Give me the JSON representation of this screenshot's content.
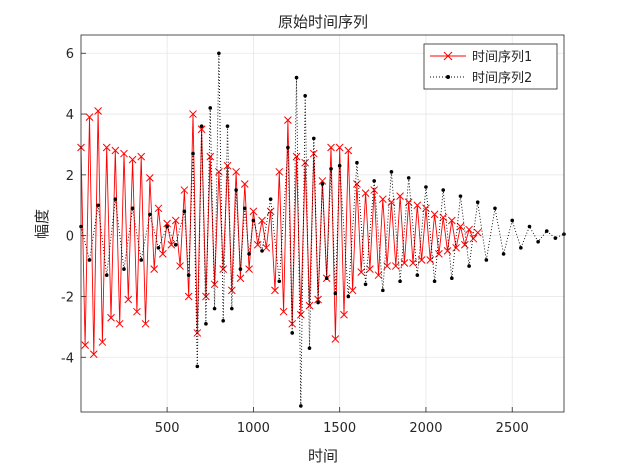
{
  "chart_data": {
    "type": "line",
    "title": "原始时间序列",
    "xlabel": "时间",
    "ylabel": "幅度",
    "xlim": [
      1,
      2800
    ],
    "ylim": [
      -5.8,
      6.6
    ],
    "xticks": [
      500,
      1000,
      1500,
      2000,
      2500
    ],
    "yticks": [
      -4,
      -2,
      0,
      2,
      4,
      6
    ],
    "grid": true,
    "legend_position": "top-right",
    "series": [
      {
        "name": "时间序列1",
        "color": "#ff0000",
        "line_style": "solid",
        "marker": "x",
        "x": [
          1,
          25,
          50,
          75,
          100,
          125,
          150,
          175,
          200,
          225,
          250,
          275,
          300,
          325,
          350,
          375,
          400,
          425,
          450,
          475,
          500,
          525,
          550,
          575,
          600,
          625,
          650,
          675,
          700,
          725,
          750,
          775,
          800,
          825,
          850,
          875,
          900,
          925,
          950,
          975,
          1000,
          1025,
          1050,
          1075,
          1100,
          1125,
          1150,
          1175,
          1200,
          1225,
          1250,
          1275,
          1300,
          1325,
          1350,
          1375,
          1400,
          1425,
          1450,
          1475,
          1500,
          1525,
          1550,
          1575,
          1600,
          1625,
          1650,
          1675,
          1700,
          1725,
          1750,
          1775,
          1800,
          1825,
          1850,
          1875,
          1900,
          1925,
          1950,
          1975,
          2000,
          2025,
          2050,
          2075,
          2100,
          2125,
          2150,
          2175,
          2200,
          2225,
          2250,
          2275,
          2300
        ],
        "y": [
          2.9,
          -3.6,
          3.9,
          -3.9,
          4.1,
          -3.5,
          2.9,
          -2.7,
          2.8,
          -2.9,
          2.7,
          -2.1,
          2.5,
          -2.5,
          2.6,
          -2.9,
          1.9,
          -1.1,
          0.9,
          -0.6,
          0.4,
          -0.3,
          0.5,
          -1.0,
          1.5,
          -2.0,
          4.0,
          -3.2,
          3.5,
          -2.0,
          2.6,
          -1.6,
          2.1,
          -1.1,
          2.3,
          -1.8,
          2.1,
          -1.4,
          1.7,
          -1.1,
          0.8,
          -0.3,
          0.5,
          -0.4,
          0.8,
          -1.8,
          2.1,
          -2.5,
          3.8,
          -2.9,
          2.6,
          -2.6,
          2.4,
          -2.3,
          2.7,
          -2.1,
          1.8,
          -1.4,
          2.9,
          -3.4,
          2.9,
          -2.6,
          2.8,
          -1.8,
          1.7,
          -1.2,
          1.4,
          -1.1,
          1.5,
          -1.3,
          1.2,
          -1.0,
          1.1,
          -1.0,
          1.3,
          -0.9,
          1.1,
          -0.9,
          1.0,
          -0.8,
          0.9,
          -0.8,
          0.7,
          -0.6,
          0.6,
          -0.5,
          0.5,
          -0.4,
          0.3,
          -0.3,
          0.2,
          -0.1,
          0.1
        ]
      },
      {
        "name": "时间序列2",
        "color": "#000000",
        "line_style": "dotted",
        "marker": "dot",
        "x": [
          1,
          50,
          100,
          150,
          200,
          250,
          300,
          350,
          400,
          450,
          500,
          550,
          600,
          625,
          650,
          675,
          700,
          725,
          750,
          775,
          800,
          825,
          850,
          875,
          900,
          925,
          950,
          975,
          1000,
          1050,
          1100,
          1150,
          1200,
          1225,
          1250,
          1275,
          1300,
          1325,
          1350,
          1375,
          1400,
          1425,
          1450,
          1475,
          1500,
          1550,
          1600,
          1650,
          1700,
          1750,
          1800,
          1850,
          1900,
          1950,
          2000,
          2050,
          2100,
          2150,
          2200,
          2250,
          2300,
          2350,
          2400,
          2450,
          2500,
          2550,
          2600,
          2650,
          2700,
          2750,
          2800
        ],
        "y": [
          0.3,
          -0.8,
          1.0,
          -1.3,
          1.2,
          -1.1,
          0.9,
          -0.8,
          0.7,
          -0.4,
          0.3,
          -0.3,
          0.8,
          -1.3,
          2.7,
          -4.3,
          3.6,
          -2.9,
          4.2,
          -2.4,
          6.0,
          -2.8,
          3.6,
          -2.4,
          1.5,
          -1.1,
          0.9,
          -0.6,
          0.5,
          -0.5,
          1.2,
          -1.5,
          2.9,
          -3.2,
          5.2,
          -5.6,
          4.6,
          -3.7,
          3.2,
          -2.2,
          1.7,
          -1.4,
          2.2,
          -1.9,
          2.3,
          -2.0,
          2.4,
          -1.6,
          1.8,
          -1.8,
          2.1,
          -1.5,
          1.9,
          -1.3,
          1.6,
          -1.5,
          1.5,
          -1.4,
          1.3,
          -1.0,
          1.1,
          -0.8,
          0.9,
          -0.6,
          0.5,
          -0.4,
          0.3,
          -0.2,
          0.15,
          -0.08,
          0.05
        ]
      }
    ]
  }
}
